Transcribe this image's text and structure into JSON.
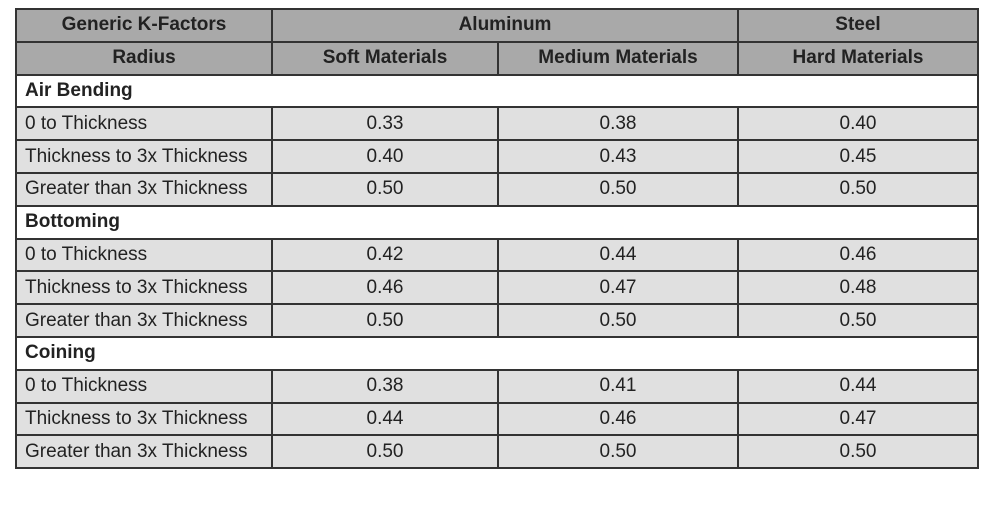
{
  "header": {
    "top": [
      "Generic K-Factors",
      "Aluminum",
      "Steel"
    ],
    "sub": [
      "Radius",
      "Soft Materials",
      "Medium Materials",
      "Hard Materials"
    ]
  },
  "sections": [
    {
      "title": "Air Bending",
      "rows": [
        [
          "0 to Thickness",
          "0.33",
          "0.38",
          "0.40"
        ],
        [
          "Thickness to 3x Thickness",
          "0.40",
          "0.43",
          "0.45"
        ],
        [
          "Greater than 3x Thickness",
          "0.50",
          "0.50",
          "0.50"
        ]
      ]
    },
    {
      "title": "Bottoming",
      "rows": [
        [
          "0 to Thickness",
          "0.42",
          "0.44",
          "0.46"
        ],
        [
          "Thickness to 3x Thickness",
          "0.46",
          "0.47",
          "0.48"
        ],
        [
          "Greater than 3x Thickness",
          "0.50",
          "0.50",
          "0.50"
        ]
      ]
    },
    {
      "title": "Coining",
      "rows": [
        [
          "0 to Thickness",
          "0.38",
          "0.41",
          "0.44"
        ],
        [
          "Thickness to 3x Thickness",
          "0.44",
          "0.46",
          "0.47"
        ],
        [
          "Greater than 3x Thickness",
          "0.50",
          "0.50",
          "0.50"
        ]
      ]
    }
  ]
}
